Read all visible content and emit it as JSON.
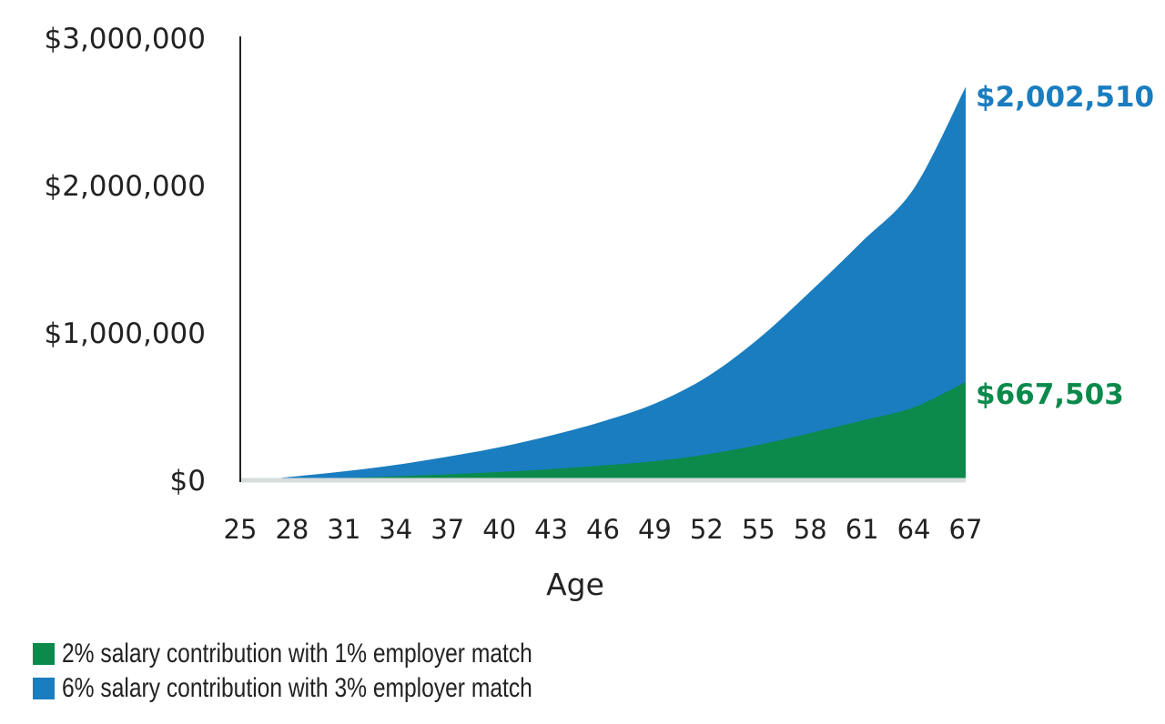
{
  "chart_data": {
    "type": "area",
    "stacked": true,
    "title": "",
    "xlabel": "Age",
    "ylabel": "",
    "categories": [
      25,
      28,
      31,
      34,
      37,
      40,
      43,
      46,
      49,
      52,
      55,
      58,
      61,
      64,
      67
    ],
    "ylim": [
      0,
      3000000
    ],
    "yticks": [
      "$0",
      "$1,000,000",
      "$2,000,000",
      "$3,000,000"
    ],
    "ytick_values": [
      0,
      1000000,
      2000000,
      3000000
    ],
    "grid": false,
    "legend_position": "bottom-left",
    "series": [
      {
        "name": "2% salary contribution with 1% employer match",
        "color": "#0b8a4b",
        "values": [
          0,
          6000,
          15000,
          26000,
          40000,
          56000,
          76000,
          100000,
          130000,
          175000,
          240000,
          320000,
          405000,
          495000,
          667503
        ]
      },
      {
        "name": "6% salary contribution with 3% employer match",
        "color": "#1a7dc0",
        "values": [
          0,
          18000,
          45000,
          78000,
          120000,
          168000,
          228000,
          300000,
          390000,
          525000,
          720000,
          960000,
          1215000,
          1485000,
          2002510
        ]
      }
    ],
    "annotations": [
      {
        "text": "$2,002,510",
        "series": 1,
        "color": "#1a7dc0"
      },
      {
        "text": "$667,503",
        "series": 0,
        "color": "#0b8a4b"
      }
    ]
  },
  "axis": {
    "y_labels": [
      "$3,000,000",
      "$2,000,000",
      "$1,000,000",
      "$0"
    ],
    "x_labels": [
      "25",
      "28",
      "31",
      "34",
      "37",
      "40",
      "43",
      "46",
      "49",
      "52",
      "55",
      "58",
      "61",
      "64",
      "67"
    ],
    "x_title": "Age"
  },
  "end_labels": {
    "blue": "$2,002,510",
    "green": "$667,503"
  },
  "legend": {
    "items": [
      {
        "label": "2% salary contribution with 1% employer match",
        "color": "#0b8a4b"
      },
      {
        "label": "6% salary contribution with 3% employer match",
        "color": "#1a7dc0"
      }
    ]
  }
}
